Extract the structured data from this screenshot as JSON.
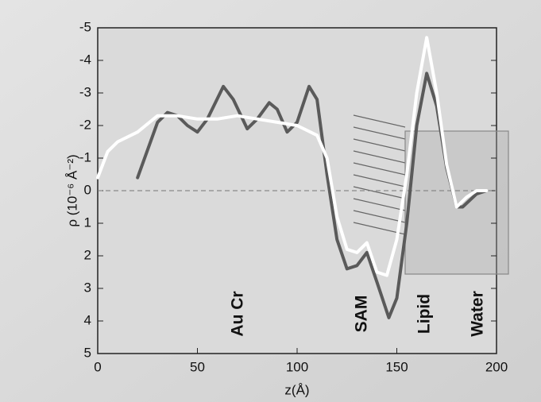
{
  "chart_data": {
    "type": "line",
    "x_label": "z(Å)",
    "y_label": "ρ (10⁻⁶ Å⁻²)",
    "xlim": [
      0,
      200
    ],
    "xticks": [
      0,
      50,
      100,
      150,
      200
    ],
    "ylim": [
      -5,
      5
    ],
    "yticks": [
      -5,
      -4,
      -3,
      -2,
      -1,
      0,
      1,
      2,
      3,
      4,
      5
    ],
    "y_reversed": true,
    "zero_line": 0,
    "annotations": [
      "Au  Cr",
      "SAM",
      "Lipid",
      "Water"
    ],
    "series": [
      {
        "color": "#5a5a5a",
        "x": [
          20,
          30,
          35,
          40,
          45,
          50,
          55,
          63,
          68,
          75,
          80,
          86,
          90,
          95,
          100,
          106,
          110,
          115,
          120,
          125,
          130,
          135,
          140,
          146,
          150,
          155,
          160,
          165,
          170,
          175,
          180,
          183,
          190,
          195
        ],
        "values": [
          -0.4,
          -2.1,
          -2.4,
          -2.3,
          -2.0,
          -1.8,
          -2.2,
          -3.2,
          -2.8,
          -1.9,
          -2.2,
          -2.7,
          -2.5,
          -1.8,
          -2.1,
          -3.2,
          -2.8,
          -0.5,
          1.5,
          2.4,
          2.3,
          1.9,
          2.8,
          3.9,
          3.3,
          1.0,
          -2.0,
          -3.6,
          -2.6,
          -0.7,
          0.5,
          0.5,
          0.1,
          0.0
        ]
      },
      {
        "color": "#ffffff",
        "x": [
          0,
          5,
          10,
          20,
          30,
          40,
          50,
          60,
          70,
          80,
          90,
          100,
          110,
          115,
          120,
          125,
          130,
          135,
          140,
          145,
          150,
          155,
          160,
          165,
          170,
          175,
          180,
          185,
          190,
          195
        ],
        "values": [
          -0.4,
          -1.2,
          -1.5,
          -1.8,
          -2.3,
          -2.3,
          -2.2,
          -2.2,
          -2.3,
          -2.2,
          -2.1,
          -2.0,
          -1.7,
          -1.0,
          0.8,
          1.8,
          1.9,
          1.6,
          2.5,
          2.6,
          1.5,
          -0.5,
          -3.0,
          -4.7,
          -3.0,
          -0.8,
          0.5,
          0.2,
          0.0,
          0.0
        ]
      }
    ]
  }
}
